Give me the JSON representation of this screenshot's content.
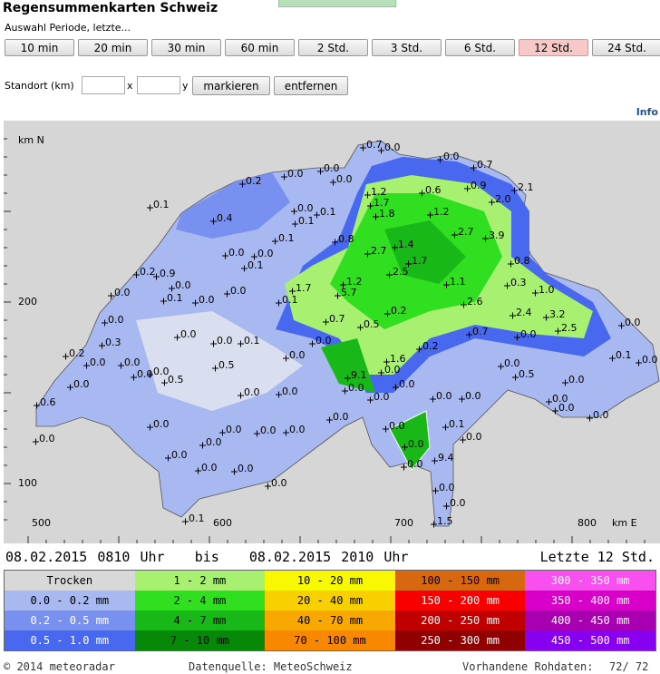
{
  "header": {
    "title": "Regensummenkarten Schweiz",
    "subtitle": "Auswahl Periode, letzte...",
    "buttons": [
      "10 min",
      "20 min",
      "30 min",
      "60 min",
      "2 Std.",
      "3 Std.",
      "6 Std.",
      "12 Std.",
      "24 Std."
    ],
    "active_button": 7
  },
  "location": {
    "label": "Standort (km)",
    "x_label": "x",
    "y_label": "y",
    "mark_button": "markieren",
    "remove_button": "entfernen"
  },
  "info": "Info",
  "map": {
    "y_axis_title": "km N",
    "y_labels": [
      "200",
      "100"
    ],
    "x_labels": [
      "500",
      "600",
      "700",
      "800"
    ],
    "x_axis_title": "km E",
    "stations": [
      "0.7",
      "0.0",
      "0.0",
      "0.7",
      "0.0",
      "0.0",
      "0.2",
      "0.0",
      "0.9",
      "2.1",
      "1.2",
      "0.6",
      "2.0",
      "0.1",
      "1.7",
      "0.0",
      "0.1",
      "1.8",
      "1.2",
      "0.4",
      "0.1",
      "2.7",
      "3.9",
      "0.8",
      "0.0",
      "0.1",
      "0.0",
      "1.4",
      "2.7",
      "1.7",
      "0.1",
      "2.5",
      "0.8",
      "0.2",
      "0.9",
      "0.0",
      "0.0",
      "0.0",
      "1.7",
      "1.2",
      "5.7",
      "1.1",
      "0.3",
      "1.0",
      "0.1",
      "0.0",
      "0.1",
      "2.6",
      "0.2",
      "2.4",
      "3.2",
      "0.0",
      "0.0",
      "0.7",
      "0.5",
      "2.5",
      "0.7",
      "0.0",
      "0.0",
      "0.0",
      "0.1",
      "0.0",
      "0.2",
      "0.3",
      "0.2",
      "0.0",
      "1.6",
      "0.1",
      "0.0",
      "0.0",
      "0.0",
      "0.0",
      "0.5",
      "0.0",
      "0.0",
      "9.1",
      "0.5",
      "0.0",
      "0.5",
      "0.0",
      "0.0",
      "0.0",
      "0.0",
      "0.0",
      "0.0",
      "0.0",
      "0.0",
      "0.0",
      "0.0",
      "0.0",
      "0.6",
      "0.0",
      "0.0",
      "0.0",
      "0.0",
      "0.1",
      "0.0",
      "0.0",
      "0.0",
      "0.0",
      "0.0",
      "0.0",
      "0.0",
      "0.0",
      "9.4",
      "0.0",
      "0.0",
      "0.0",
      "0.0",
      "0.0",
      "0.0",
      "0.1",
      "1.5",
      "0.3",
      "0.0"
    ]
  },
  "period": {
    "from": "08.02.2015 0810 Uhr",
    "bis": "bis",
    "to": "08.02.2015 2010 Uhr",
    "label": "Letzte 12 Std."
  },
  "legend": {
    "rows": [
      [
        {
          "label": "Trocken",
          "color": "#d8d8d8"
        },
        {
          "label": "1 - 2 mm",
          "color": "#a8f070"
        },
        {
          "label": "10 - 20 mm",
          "color": "#f8f800"
        },
        {
          "label": "100 - 150 mm",
          "color": "#d86810"
        },
        {
          "label": "300 - 350 mm",
          "color": "#f850f0"
        }
      ],
      [
        {
          "label": "0.0 - 0.2 mm",
          "color": "#a8b8f0"
        },
        {
          "label": "2 - 4 mm",
          "color": "#30e020"
        },
        {
          "label": "20 - 40 mm",
          "color": "#f8d000"
        },
        {
          "label": "150 - 200 mm",
          "color": "#f80000"
        },
        {
          "label": "350 - 400 mm",
          "color": "#d800c8"
        }
      ],
      [
        {
          "label": "0.2 - 0.5 mm",
          "color": "#7890f0"
        },
        {
          "label": "4 - 7 mm",
          "color": "#18b818"
        },
        {
          "label": "40 - 70 mm",
          "color": "#f8a800"
        },
        {
          "label": "200 - 250 mm",
          "color": "#c00000"
        },
        {
          "label": "400 - 450 mm",
          "color": "#a800b0"
        }
      ],
      [
        {
          "label": "0.5 - 1.0 mm",
          "color": "#4868f0"
        },
        {
          "label": "7 - 10 mm",
          "color": "#088808"
        },
        {
          "label": "70 - 100 mm",
          "color": "#f88800"
        },
        {
          "label": "250 - 300 mm",
          "color": "#900000"
        },
        {
          "label": "450 - 500 mm",
          "color": "#8800f0"
        }
      ]
    ]
  },
  "footer": {
    "copyright": "© 2014 meteoradar",
    "source": "Datenquelle: MeteoSchweiz",
    "raw_label": "Vorhandene Rohdaten:",
    "raw_value": "72/ 72"
  }
}
